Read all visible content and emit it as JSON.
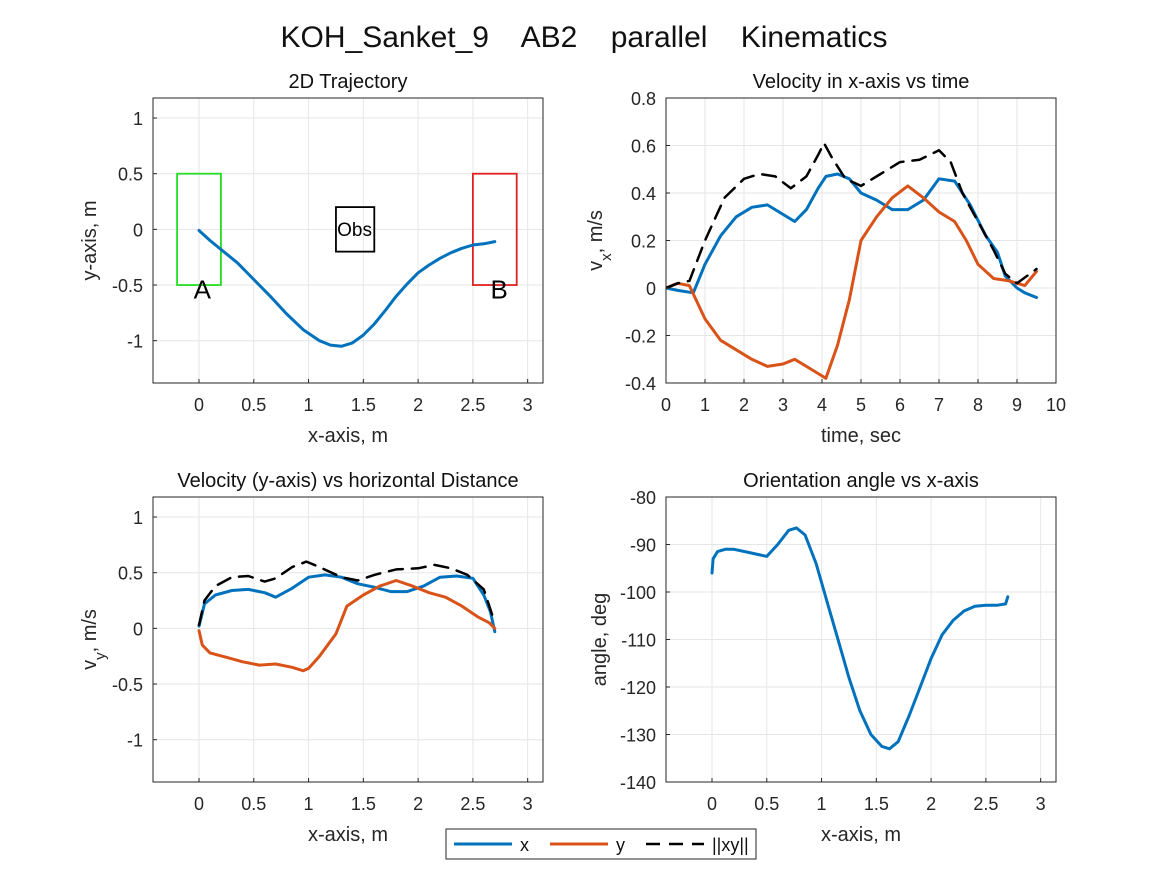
{
  "figure": {
    "title": "KOH_Sanket_9    AB2    parallel    Kinematics"
  },
  "colors": {
    "x": "#0072BD",
    "y": "#D95319",
    "xy": "#000000",
    "start_box": "#22DD22",
    "end_box": "#E02020",
    "grid": "#E6E6E6",
    "axis": "#262626"
  },
  "legend": {
    "entries": [
      "x",
      "y",
      "||xy||"
    ],
    "placement": "bottom-center"
  },
  "chart_data": [
    {
      "id": "traj",
      "type": "line",
      "title": "2D Trajectory",
      "xlabel": "x-axis, m",
      "ylabel": "y-axis, m",
      "xlim": [
        -0.42,
        3.14
      ],
      "ylim": [
        -1.38,
        1.18
      ],
      "xticks": [
        0,
        0.5,
        1,
        1.5,
        2,
        2.5,
        3
      ],
      "xtick_labels": [
        "0",
        "0.5",
        "1",
        "1.5",
        "2",
        "2.5",
        "3"
      ],
      "yticks": [
        -1,
        -0.5,
        0,
        0.5,
        1
      ],
      "ytick_labels": [
        "-1",
        "-0.5",
        "0",
        "0.5",
        "1"
      ],
      "grid": true,
      "series": [
        {
          "key": "x",
          "x": [
            0,
            0.1,
            0.2,
            0.35,
            0.5,
            0.65,
            0.8,
            0.95,
            1.1,
            1.2,
            1.3,
            1.4,
            1.5,
            1.6,
            1.7,
            1.8,
            1.9,
            2.0,
            2.1,
            2.2,
            2.3,
            2.4,
            2.5,
            2.6,
            2.7
          ],
          "y": [
            -0.01,
            -0.1,
            -0.18,
            -0.3,
            -0.45,
            -0.6,
            -0.76,
            -0.9,
            -1.0,
            -1.04,
            -1.05,
            -1.02,
            -0.95,
            -0.85,
            -0.73,
            -0.6,
            -0.49,
            -0.39,
            -0.32,
            -0.26,
            -0.21,
            -0.17,
            -0.14,
            -0.13,
            -0.11
          ]
        }
      ],
      "annotations": [
        {
          "type": "rect",
          "color_key": "start_box",
          "x0": -0.2,
          "x1": 0.2,
          "y0": -0.5,
          "y1": 0.5
        },
        {
          "type": "rect",
          "color_key": "end_box",
          "x0": 2.5,
          "x1": 2.9,
          "y0": -0.5,
          "y1": 0.5
        },
        {
          "type": "rect",
          "color_key": "xy",
          "x0": 1.25,
          "x1": 1.6,
          "y0": -0.2,
          "y1": 0.2
        },
        {
          "type": "text",
          "text": "A",
          "x": 0.03,
          "y": -0.62,
          "class": "annot"
        },
        {
          "type": "text",
          "text": "B",
          "x": 2.74,
          "y": -0.62,
          "class": "annot"
        },
        {
          "type": "text",
          "text": "Obs",
          "x": 1.42,
          "y": -0.06,
          "class": "obs"
        }
      ]
    },
    {
      "id": "vx",
      "type": "line",
      "title": "Velocity in x-axis vs time",
      "xlabel": "time, sec",
      "ylabel_main": "v",
      "ylabel_sub": "x",
      "ylabel_rest": ", m/s",
      "xlim": [
        0,
        10
      ],
      "ylim": [
        -0.4,
        0.8
      ],
      "xticks": [
        0,
        1,
        2,
        3,
        4,
        5,
        6,
        7,
        8,
        9,
        10
      ],
      "xtick_labels": [
        "0",
        "1",
        "2",
        "3",
        "4",
        "5",
        "6",
        "7",
        "8",
        "9",
        "10"
      ],
      "yticks": [
        -0.4,
        -0.2,
        0,
        0.2,
        0.4,
        0.6,
        0.8
      ],
      "ytick_labels": [
        "-0.4",
        "-0.2",
        "0",
        "0.2",
        "0.4",
        "0.6",
        "0.8"
      ],
      "grid": true,
      "series": [
        {
          "key": "x",
          "x": [
            0,
            0.3,
            0.7,
            1.0,
            1.4,
            1.8,
            2.2,
            2.6,
            3.0,
            3.3,
            3.6,
            3.9,
            4.1,
            4.4,
            4.7,
            5.0,
            5.4,
            5.8,
            6.2,
            6.6,
            7.0,
            7.4,
            7.8,
            8.2,
            8.5,
            8.7,
            9.0,
            9.2,
            9.5
          ],
          "y": [
            0,
            -0.01,
            -0.02,
            0.1,
            0.22,
            0.3,
            0.34,
            0.35,
            0.31,
            0.28,
            0.33,
            0.42,
            0.47,
            0.48,
            0.46,
            0.4,
            0.37,
            0.33,
            0.33,
            0.37,
            0.46,
            0.45,
            0.35,
            0.22,
            0.15,
            0.05,
            0.0,
            -0.02,
            -0.04
          ]
        },
        {
          "key": "y",
          "x": [
            0,
            0.3,
            0.6,
            1.0,
            1.4,
            1.8,
            2.2,
            2.6,
            3.0,
            3.3,
            3.6,
            3.9,
            4.1,
            4.4,
            4.7,
            5.0,
            5.4,
            5.8,
            6.2,
            6.6,
            7.0,
            7.4,
            7.7,
            8.0,
            8.4,
            8.8,
            9.2,
            9.5
          ],
          "y": [
            0,
            0.02,
            0.01,
            -0.13,
            -0.22,
            -0.26,
            -0.3,
            -0.33,
            -0.32,
            -0.3,
            -0.33,
            -0.36,
            -0.38,
            -0.24,
            -0.05,
            0.2,
            0.3,
            0.38,
            0.43,
            0.38,
            0.32,
            0.28,
            0.2,
            0.1,
            0.04,
            0.03,
            0.01,
            0.07
          ]
        },
        {
          "key": "xy",
          "dashed": true,
          "x": [
            0,
            0.3,
            0.6,
            1.0,
            1.5,
            2.0,
            2.4,
            2.8,
            3.2,
            3.6,
            3.9,
            4.05,
            4.25,
            4.6,
            5.0,
            5.5,
            6.0,
            6.5,
            7.0,
            7.3,
            7.6,
            8.0,
            8.4,
            8.7,
            9.0,
            9.5
          ],
          "y": [
            0,
            0.02,
            0.03,
            0.2,
            0.38,
            0.46,
            0.48,
            0.47,
            0.42,
            0.47,
            0.56,
            0.61,
            0.55,
            0.46,
            0.43,
            0.48,
            0.53,
            0.54,
            0.58,
            0.53,
            0.4,
            0.28,
            0.16,
            0.06,
            0.02,
            0.08
          ]
        }
      ]
    },
    {
      "id": "vy",
      "type": "line",
      "title": "Velocity (y-axis) vs horizontal Distance",
      "xlabel": "x-axis, m",
      "ylabel_main": "v",
      "ylabel_sub": "y",
      "ylabel_rest": ", m/s",
      "xlim": [
        -0.42,
        3.14
      ],
      "ylim": [
        -1.38,
        1.18
      ],
      "xticks": [
        0,
        0.5,
        1,
        1.5,
        2,
        2.5,
        3
      ],
      "xtick_labels": [
        "0",
        "0.5",
        "1",
        "1.5",
        "2",
        "2.5",
        "3"
      ],
      "yticks": [
        -1,
        -0.5,
        0,
        0.5,
        1
      ],
      "ytick_labels": [
        "-1",
        "-0.5",
        "0",
        "0.5",
        "1"
      ],
      "grid": true,
      "series": [
        {
          "key": "x",
          "x": [
            0,
            0.05,
            0.15,
            0.3,
            0.45,
            0.6,
            0.7,
            0.85,
            1.0,
            1.15,
            1.3,
            1.45,
            1.6,
            1.75,
            1.9,
            2.05,
            2.2,
            2.35,
            2.5,
            2.6,
            2.66,
            2.7
          ],
          "y": [
            0.02,
            0.22,
            0.3,
            0.34,
            0.35,
            0.32,
            0.28,
            0.36,
            0.46,
            0.48,
            0.46,
            0.4,
            0.37,
            0.33,
            0.33,
            0.38,
            0.46,
            0.47,
            0.45,
            0.3,
            0.15,
            -0.03
          ]
        },
        {
          "key": "y",
          "x": [
            0,
            0.03,
            0.1,
            0.25,
            0.4,
            0.55,
            0.7,
            0.85,
            0.95,
            1.0,
            1.1,
            1.25,
            1.35,
            1.5,
            1.65,
            1.8,
            1.95,
            2.1,
            2.25,
            2.4,
            2.55,
            2.65,
            2.7
          ],
          "y": [
            -0.02,
            -0.15,
            -0.22,
            -0.26,
            -0.3,
            -0.33,
            -0.32,
            -0.35,
            -0.38,
            -0.36,
            -0.25,
            -0.05,
            0.2,
            0.3,
            0.38,
            0.43,
            0.38,
            0.32,
            0.28,
            0.2,
            0.1,
            0.05,
            0.0
          ]
        },
        {
          "key": "xy",
          "dashed": true,
          "x": [
            0,
            0.05,
            0.15,
            0.3,
            0.45,
            0.6,
            0.7,
            0.85,
            0.98,
            1.1,
            1.3,
            1.45,
            1.6,
            1.8,
            2.0,
            2.15,
            2.3,
            2.45,
            2.6,
            2.7
          ],
          "y": [
            0.03,
            0.25,
            0.38,
            0.46,
            0.47,
            0.42,
            0.45,
            0.55,
            0.6,
            0.55,
            0.46,
            0.43,
            0.48,
            0.53,
            0.54,
            0.57,
            0.54,
            0.48,
            0.35,
            0.05
          ]
        }
      ]
    },
    {
      "id": "angle",
      "type": "line",
      "title": "Orientation angle vs x-axis",
      "xlabel": "x-axis, m",
      "ylabel": "angle, deg",
      "xlim": [
        -0.42,
        3.14
      ],
      "ylim": [
        -140,
        -80
      ],
      "xticks": [
        0,
        0.5,
        1,
        1.5,
        2,
        2.5,
        3
      ],
      "xtick_labels": [
        "0",
        "0.5",
        "1",
        "1.5",
        "2",
        "2.5",
        "3"
      ],
      "yticks": [
        -140,
        -130,
        -120,
        -110,
        -100,
        -90,
        -80
      ],
      "ytick_labels": [
        "-140",
        "-130",
        "-120",
        "-110",
        "-100",
        "-90",
        "-80"
      ],
      "grid": true,
      "series": [
        {
          "key": "x",
          "x": [
            0,
            0.01,
            0.05,
            0.12,
            0.2,
            0.3,
            0.4,
            0.5,
            0.6,
            0.7,
            0.77,
            0.85,
            0.95,
            1.05,
            1.15,
            1.25,
            1.35,
            1.45,
            1.55,
            1.62,
            1.7,
            1.8,
            1.9,
            2.0,
            2.1,
            2.2,
            2.3,
            2.4,
            2.5,
            2.6,
            2.68,
            2.7
          ],
          "y": [
            -96,
            -93,
            -91.5,
            -91,
            -91,
            -91.5,
            -92,
            -92.5,
            -90,
            -87,
            -86.5,
            -88,
            -94,
            -102,
            -110,
            -118,
            -125,
            -130,
            -132.5,
            -133,
            -131.5,
            -126,
            -120,
            -114,
            -109,
            -106,
            -104,
            -103,
            -102.8,
            -102.8,
            -102.5,
            -101
          ]
        }
      ]
    }
  ]
}
